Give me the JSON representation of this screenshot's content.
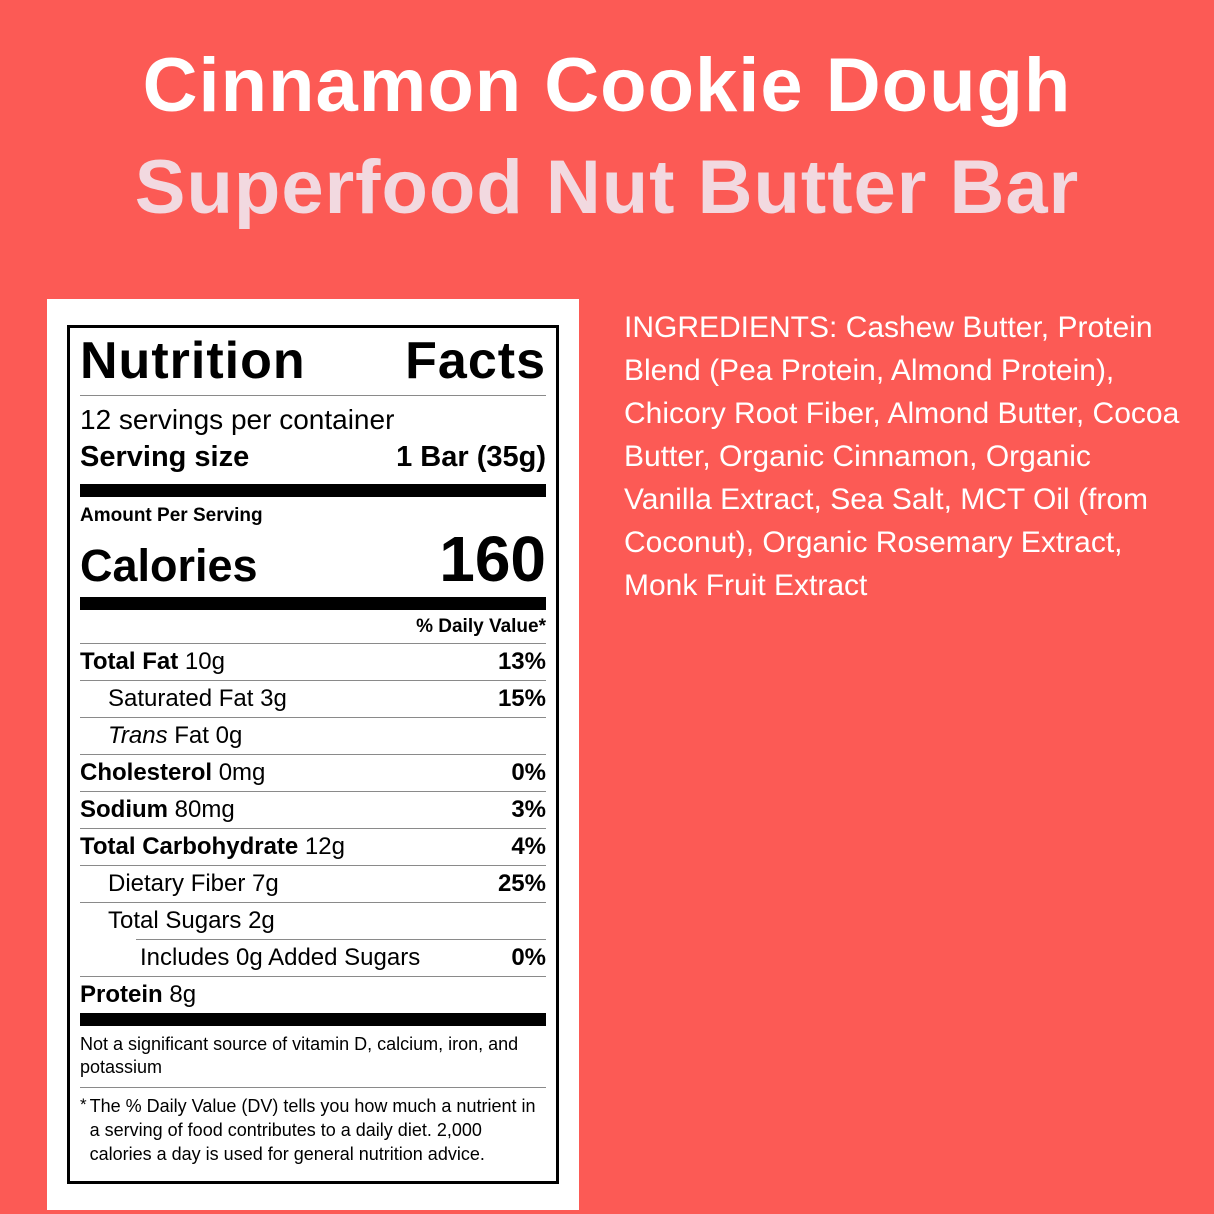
{
  "page": {
    "background_color": "#FC5A55",
    "title_line1": "Cinnamon Cookie Dough",
    "title_line2": "Superfood Nut Butter Bar",
    "title_line1_color": "#FFFFFF",
    "title_line2_color": "#F2D9E0"
  },
  "nutrition_label": {
    "title_words": [
      "Nutrition",
      "Facts"
    ],
    "servings_per_container": "12 servings per container",
    "serving_size_label": "Serving size",
    "serving_size_value": "1 Bar (35g)",
    "amount_per_serving": "Amount Per Serving",
    "calories_label": "Calories",
    "calories_value": "160",
    "daily_value_header": "% Daily Value*",
    "rows": [
      {
        "name": "Total Fat",
        "name_bold": true,
        "name_italic": false,
        "amount": "10g",
        "dv": "13%",
        "indent": 0
      },
      {
        "name": "Saturated Fat",
        "name_bold": false,
        "name_italic": false,
        "amount": "3g",
        "dv": "15%",
        "indent": 1
      },
      {
        "name": "Trans",
        "name_bold": false,
        "name_italic": true,
        "amount": "Fat 0g",
        "dv": "",
        "indent": 1
      },
      {
        "name": "Cholesterol",
        "name_bold": true,
        "name_italic": false,
        "amount": "0mg",
        "dv": "0%",
        "indent": 0
      },
      {
        "name": "Sodium",
        "name_bold": true,
        "name_italic": false,
        "amount": "80mg",
        "dv": "3%",
        "indent": 0
      },
      {
        "name": "Total Carbohydrate",
        "name_bold": true,
        "name_italic": false,
        "amount": "12g",
        "dv": "4%",
        "indent": 0
      },
      {
        "name": "Dietary Fiber",
        "name_bold": false,
        "name_italic": false,
        "amount": "7g",
        "dv": "25%",
        "indent": 1
      },
      {
        "name": "Total Sugars",
        "name_bold": false,
        "name_italic": false,
        "amount": "2g",
        "dv": "",
        "indent": 1
      },
      {
        "name": "Includes 0g Added Sugars",
        "name_bold": false,
        "name_italic": false,
        "amount": "",
        "dv": "0%",
        "indent": 2
      },
      {
        "name": "Protein",
        "name_bold": true,
        "name_italic": false,
        "amount": "8g",
        "dv": "",
        "indent": 0
      }
    ],
    "not_significant_note": "Not a significant source of vitamin D, calcium, iron, and potassium",
    "footnote_marker": "*",
    "footnote": "The % Daily Value (DV) tells you how much a nutrient in a serving of food contributes to a daily diet. 2,000 calories a day is used for general nutrition advice."
  },
  "ingredients": {
    "text": "INGREDIENTS: Cashew Butter, Protein Blend (Pea Protein, Almond Protein), Chicory Root Fiber, Almond Butter, Cocoa Butter, Organic Cinnamon, Organic Vanilla Extract, Sea Salt, MCT Oil (from Coconut), Organic Rosemary Extract, Monk Fruit Extract"
  }
}
